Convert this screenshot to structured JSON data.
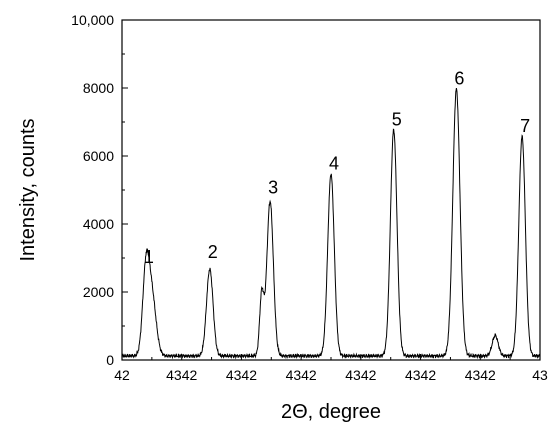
{
  "chart_data": {
    "type": "line",
    "xlabel": "2Θ, degree",
    "ylabel": "Intensity, counts",
    "xlim": [
      0,
      7
    ],
    "ylim": [
      0,
      10000
    ],
    "grid": false,
    "x_tick_labels": [
      "42",
      "4342",
      "4342",
      "4342",
      "4342",
      "4342",
      "4342",
      "43"
    ],
    "y_ticks": [
      0,
      2000,
      4000,
      6000,
      8000,
      10000
    ],
    "y_tick_labels": [
      "0",
      "2000",
      "4000",
      "6000",
      "8000",
      "10,000"
    ],
    "peaks": [
      {
        "label": "1",
        "x": 0.4,
        "height": 2350,
        "width": 0.055,
        "label_y": 2850
      },
      {
        "label": "2",
        "x": 1.47,
        "height": 2550,
        "width": 0.055,
        "label_y": 3000
      },
      {
        "label": "3",
        "x": 2.48,
        "height": 4550,
        "width": 0.055,
        "label_y": 4900
      },
      {
        "label": "4",
        "x": 3.5,
        "height": 5350,
        "width": 0.055,
        "label_y": 5600
      },
      {
        "label": "5",
        "x": 4.55,
        "height": 6650,
        "width": 0.055,
        "label_y": 6900
      },
      {
        "label": "6",
        "x": 5.6,
        "height": 7850,
        "width": 0.06,
        "label_y": 8100
      },
      {
        "label": "7",
        "x": 6.7,
        "height": 6450,
        "width": 0.055,
        "label_y": 6700
      }
    ],
    "shoulders": [
      {
        "x": 0.5,
        "height": 1750,
        "width": 0.07
      },
      {
        "x": 2.34,
        "height": 1800,
        "width": 0.035
      },
      {
        "x": 6.25,
        "height": 600,
        "width": 0.05
      }
    ],
    "baseline": 120,
    "line_color": "#000000"
  }
}
